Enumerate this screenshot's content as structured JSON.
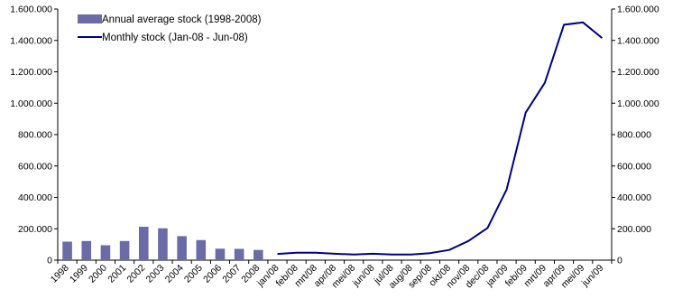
{
  "chart_data": {
    "type": "bar+line",
    "categories": [
      "1998",
      "1999",
      "2000",
      "2001",
      "2002",
      "2003",
      "2004",
      "2005",
      "2006",
      "2007",
      "2008",
      "jan/08",
      "feb/08",
      "mrt/08",
      "apr/08",
      "mei/08",
      "jun/08",
      "jul/08",
      "aug/08",
      "sep/08",
      "okt/08",
      "nov/08",
      "dec/08",
      "jan/09",
      "feb/09",
      "mrt/09",
      "apr/09",
      "mei/09",
      "jun/09"
    ],
    "series": [
      {
        "name": "Annual average stock (1998-2008)",
        "type": "bar",
        "color": "#6b6ba8",
        "values": [
          118000,
          122000,
          95000,
          122000,
          213000,
          203000,
          153000,
          128000,
          73000,
          72000,
          65000,
          null,
          null,
          null,
          null,
          null,
          null,
          null,
          null,
          null,
          null,
          null,
          null,
          null,
          null,
          null,
          null,
          null,
          null
        ]
      },
      {
        "name": "Monthly stock (Jan-08 - Jun-08)",
        "type": "line",
        "color": "#000080",
        "values": [
          null,
          null,
          null,
          null,
          null,
          null,
          null,
          null,
          null,
          null,
          null,
          40000,
          47000,
          47000,
          41000,
          36000,
          41000,
          36000,
          36000,
          45000,
          65000,
          122000,
          205000,
          450000,
          940000,
          1130000,
          1500000,
          1515000,
          1415000
        ]
      }
    ],
    "y_ticks": [
      "0",
      "200.000",
      "400.000",
      "600.000",
      "800.000",
      "1.000.000",
      "1.200.000",
      "1.400.000",
      "1.600.000"
    ],
    "ylim": [
      0,
      1600000
    ],
    "y_tick_step": 200000,
    "legend_position": "top-left",
    "grid": false
  }
}
